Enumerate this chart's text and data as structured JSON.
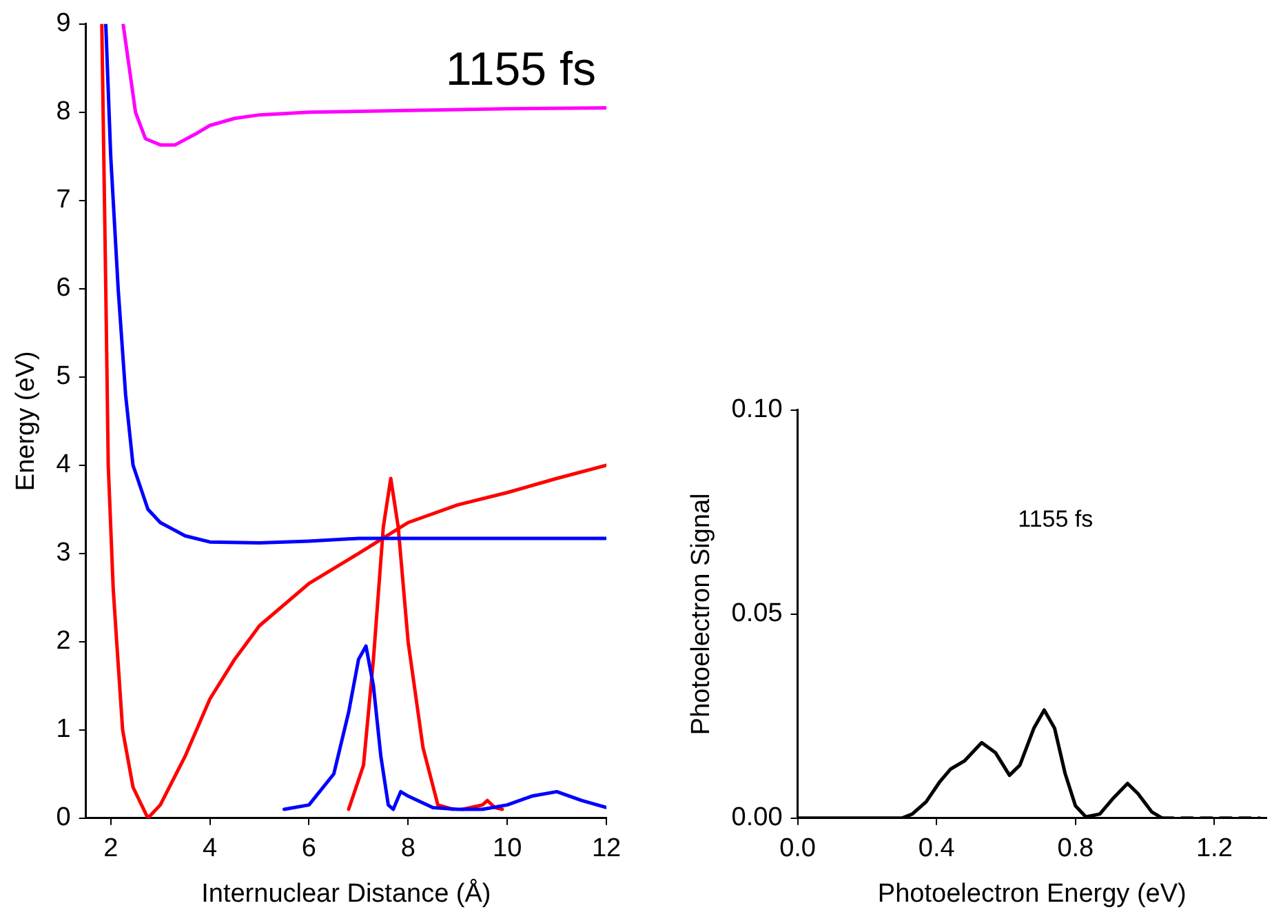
{
  "chart_data": [
    {
      "type": "line",
      "xlabel": "Internuclear Distance (Å)",
      "ylabel": "Energy (eV)",
      "annotations": [
        "1155 fs"
      ],
      "xlim": [
        1.5,
        12
      ],
      "xticks": [
        2,
        4,
        6,
        8,
        10,
        12
      ],
      "ylim": [
        0,
        9
      ],
      "yticks": [
        0,
        1,
        2,
        3,
        4,
        5,
        6,
        7,
        8,
        9
      ],
      "grid": false,
      "legend": false,
      "marker": "none",
      "line_style": "solid",
      "series": [
        {
          "color": "#ff00ff",
          "x": [
            2.25,
            2.4,
            2.5,
            2.7,
            3.0,
            3.3,
            3.7,
            4,
            4.5,
            5,
            6,
            8,
            10,
            12
          ],
          "values": [
            9,
            8.4,
            8.0,
            7.7,
            7.63,
            7.63,
            7.75,
            7.85,
            7.93,
            7.97,
            8.0,
            8.02,
            8.04,
            8.05
          ]
        },
        {
          "color": "#0000ff",
          "x": [
            1.9,
            2.0,
            2.15,
            2.3,
            2.45,
            2.75,
            3.0,
            3.5,
            4,
            5,
            6,
            7,
            12
          ],
          "values": [
            9,
            7.5,
            6,
            4.8,
            4,
            3.5,
            3.35,
            3.2,
            3.13,
            3.12,
            3.14,
            3.17,
            3.17
          ]
        },
        {
          "color": "#ff0000",
          "x": [
            1.82,
            1.9,
            1.95,
            2.05,
            2.12,
            2.24,
            2.45,
            2.75,
            3.0,
            3.5,
            4,
            4.5,
            5,
            6,
            7,
            8,
            9,
            10,
            11,
            12
          ],
          "values": [
            9,
            6,
            4,
            2.6,
            2,
            1,
            0.35,
            0,
            0.15,
            0.7,
            1.35,
            1.8,
            2.18,
            2.66,
            3.0,
            3.35,
            3.55,
            3.69,
            3.85,
            4.0
          ]
        },
        {
          "color": "#0000ff",
          "x": [
            5.5,
            6,
            6.5,
            6.8,
            7.0,
            7.15,
            7.3,
            7.45,
            7.6,
            7.7,
            7.85,
            8.0,
            8.5,
            9,
            9.5,
            10,
            10.5,
            11,
            11.5,
            12
          ],
          "values": [
            0.1,
            0.15,
            0.5,
            1.2,
            1.8,
            1.95,
            1.5,
            0.7,
            0.15,
            0.1,
            0.3,
            0.25,
            0.12,
            0.1,
            0.1,
            0.15,
            0.25,
            0.3,
            0.2,
            0.12
          ]
        },
        {
          "color": "#ff0000",
          "x": [
            6.8,
            7.1,
            7.3,
            7.5,
            7.65,
            7.8,
            8.0,
            8.3,
            8.6,
            8.9,
            9.0,
            9.1,
            9.5,
            9.6,
            9.75,
            9.9
          ],
          "values": [
            0.1,
            0.6,
            1.8,
            3.3,
            3.85,
            3.3,
            2.0,
            0.8,
            0.15,
            0.1,
            null,
            0.1,
            0.15,
            0.2,
            0.12,
            0.1
          ]
        }
      ]
    },
    {
      "type": "line",
      "xlabel": "Photoelectron Energy (eV)",
      "ylabel": "Photoelectron Signal",
      "annotations": [
        "1155 fs"
      ],
      "xlim": [
        0,
        1.35
      ],
      "xticks": [
        {
          "value": 0,
          "label": "0.0"
        },
        0.4,
        0.8,
        1.2
      ],
      "ylim": [
        0,
        0.1
      ],
      "yticks": [
        {
          "value": 0,
          "label": "0.00"
        },
        0.05,
        {
          "value": 0.1,
          "label": "0.10"
        }
      ],
      "grid": false,
      "legend": false,
      "marker": "none",
      "series": [
        {
          "color": "#000000",
          "line_style": "solid",
          "x": [
            0,
            0.1,
            0.3,
            0.33,
            0.37,
            0.41,
            0.44,
            0.48,
            0.53,
            0.57,
            0.61,
            0.64,
            0.68,
            0.71,
            0.74,
            0.77,
            0.8,
            0.83,
            0.87,
            0.91,
            0.95,
            0.98,
            1.02,
            1.05
          ],
          "values": [
            0,
            0,
            0,
            0.001,
            0.004,
            0.009,
            0.012,
            0.014,
            0.0185,
            0.016,
            0.0105,
            0.013,
            0.022,
            0.0265,
            0.022,
            0.011,
            0.003,
            0.0003,
            0.001,
            0.005,
            0.0085,
            0.006,
            0.0015,
            0
          ]
        },
        {
          "color": "#000000",
          "line_style": "dashed",
          "x": [
            1.05,
            1.33
          ],
          "values": [
            0,
            0
          ]
        }
      ]
    }
  ]
}
